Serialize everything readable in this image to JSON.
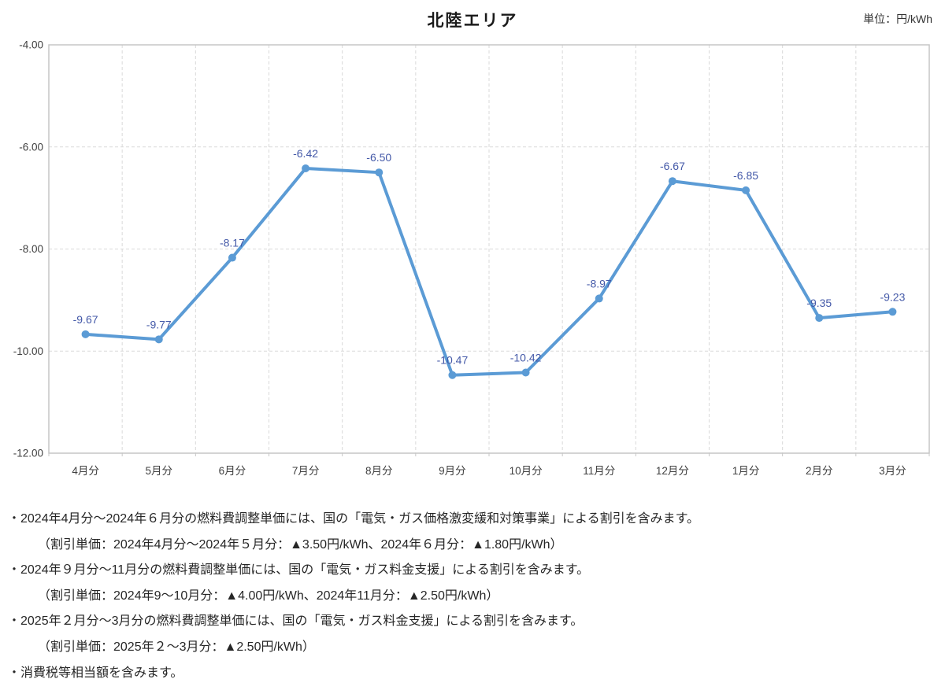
{
  "title": "北陸エリア",
  "unit_label": "単位：円/kWh",
  "chart_data": {
    "type": "line",
    "title": "北陸エリア",
    "unit": "円/kWh",
    "categories": [
      "4月分",
      "5月分",
      "6月分",
      "7月分",
      "8月分",
      "9月分",
      "10月分",
      "11月分",
      "12月分",
      "1月分",
      "2月分",
      "3月分"
    ],
    "values": [
      -9.67,
      -9.77,
      -8.17,
      -6.42,
      -6.5,
      -10.47,
      -10.42,
      -8.97,
      -6.67,
      -6.85,
      -9.35,
      -9.23
    ],
    "point_labels": [
      "-9.67",
      "-9.77",
      "-8.17",
      "-6.42",
      "-6.50",
      "-10.47",
      "-10.42",
      "-8.97",
      "-6.67",
      "-6.85",
      "-9.35",
      "-9.23"
    ],
    "xlabel": "",
    "ylabel": "",
    "ylim": [
      -12.0,
      -4.0
    ],
    "y_ticks": [
      "-4.00",
      "-6.00",
      "-8.00",
      "-10.00",
      "-12.00"
    ],
    "grid": "dashed horizontal and vertical",
    "legend": "none",
    "colors": {
      "series_line": "#5B9BD5",
      "marker": "#5B9BD5",
      "data_label": "#4459A8",
      "grid_line": "#D9D9D9",
      "plot_border": "#C6C6C6",
      "axis_text": "#404040"
    }
  },
  "notes": [
    {
      "indent": false,
      "text": "・2024年4月分～2024年６月分の燃料費調整単価には、国の「電気・ガス価格激変緩和対策事業」による割引を含みます。"
    },
    {
      "indent": true,
      "text": "（割引単価：2024年4月分～2024年５月分：▲3.50円/kWh、2024年６月分：▲1.80円/kWh）"
    },
    {
      "indent": false,
      "text": "・2024年９月分～11月分の燃料費調整単価には、国の「電気・ガス料金支援」による割引を含みます。"
    },
    {
      "indent": true,
      "text": "（割引単価：2024年9～10月分：▲4.00円/kWh、2024年11月分：▲2.50円/kWh）"
    },
    {
      "indent": false,
      "text": "・2025年２月分～3月分の燃料費調整単価には、国の「電気・ガス料金支援」による割引を含みます。"
    },
    {
      "indent": true,
      "text": "（割引単価：2025年２～3月分：▲2.50円/kWh）"
    },
    {
      "indent": false,
      "text": "・消費税等相当額を含みます。"
    }
  ]
}
